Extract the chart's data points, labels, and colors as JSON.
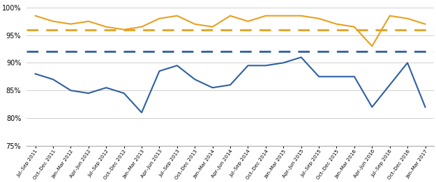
{
  "labels": [
    "Jul–Sep 2011",
    "Oct–Dec 2011",
    "Jan–Mar 2012",
    "Apr–Jun 2012",
    "Jul–Sep 2012",
    "Oct–Dec 2012",
    "Jan–Mar 2013",
    "Apr–Jun 2013",
    "Jul–Sep 2013",
    "Oct–Dec 2013",
    "Jan–Mar 2014",
    "Apr–Jun 2014",
    "Jul–Sep 2014",
    "Oct–Dec 2014",
    "Jan–Mar 2015",
    "Apr–Jun 2015",
    "Jul–Sep 2015",
    "Oct–Dec 2015",
    "Jan–Mar 2016",
    "Apr–Jun 2016",
    "Jul–Sep 2016",
    "Oct–Dec 2016",
    "Jan–Mar 2017"
  ],
  "blue_line": [
    88,
    87,
    85,
    84.5,
    85.5,
    84.5,
    81,
    88.5,
    89.5,
    87,
    85.5,
    86,
    89.5,
    89.5,
    90,
    91,
    87.5,
    87.5,
    87.5,
    82,
    86,
    90,
    82
  ],
  "orange_line": [
    98.5,
    97.5,
    97,
    97.5,
    96.5,
    96,
    96.5,
    98,
    98.5,
    97,
    96.5,
    98.5,
    97.5,
    98.5,
    98.5,
    98.5,
    98,
    97,
    96.5,
    93,
    98.5,
    98,
    97
  ],
  "blue_dashed": 92,
  "orange_dashed": 96,
  "blue_color": "#2E5FA3",
  "orange_color": "#E8A020",
  "ylim": [
    75,
    101
  ],
  "yticks": [
    75,
    80,
    85,
    90,
    95,
    100
  ],
  "background_color": "#ffffff",
  "grid_color": "#d0d0d0"
}
